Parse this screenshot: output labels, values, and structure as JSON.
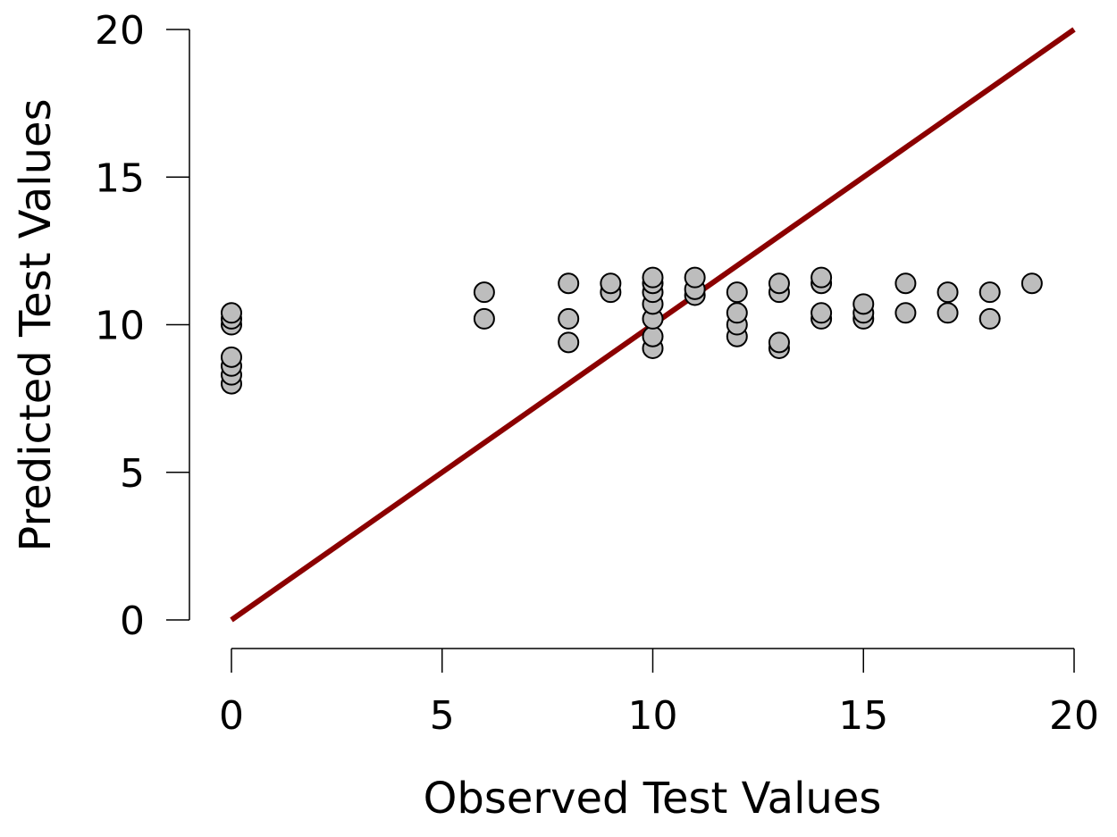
{
  "chart_data": {
    "type": "scatter",
    "title": "",
    "xlabel": "Observed Test Values",
    "ylabel": "Predicted Test Values",
    "xlim": [
      0,
      20
    ],
    "ylim": [
      0,
      20
    ],
    "xticks": [
      0,
      5,
      10,
      15,
      20
    ],
    "yticks": [
      0,
      5,
      10,
      15,
      20
    ],
    "xtick_labels": [
      "0",
      "5",
      "10",
      "15",
      "20"
    ],
    "ytick_labels": [
      "0",
      "5",
      "10",
      "15",
      "20"
    ],
    "grid": false,
    "legend": "none",
    "reference_line": {
      "from": [
        0,
        0
      ],
      "to": [
        20,
        20
      ],
      "color": "#8b0000"
    },
    "marker_color": "#bdbdbd",
    "points": [
      [
        0,
        8.0
      ],
      [
        0,
        8.3
      ],
      [
        0,
        8.6
      ],
      [
        0,
        8.9
      ],
      [
        0,
        10.0
      ],
      [
        0,
        10.2
      ],
      [
        0,
        10.4
      ],
      [
        6,
        10.2
      ],
      [
        6,
        11.1
      ],
      [
        8,
        9.4
      ],
      [
        8,
        10.2
      ],
      [
        8,
        11.4
      ],
      [
        9,
        11.1
      ],
      [
        9,
        11.4
      ],
      [
        10,
        9.2
      ],
      [
        10,
        9.6
      ],
      [
        10,
        10.2
      ],
      [
        10,
        10.7
      ],
      [
        10,
        11.1
      ],
      [
        10,
        11.4
      ],
      [
        10,
        11.6
      ],
      [
        11,
        11.0
      ],
      [
        11,
        11.2
      ],
      [
        11,
        11.6
      ],
      [
        12,
        9.6
      ],
      [
        12,
        10.0
      ],
      [
        12,
        10.4
      ],
      [
        12,
        11.1
      ],
      [
        13,
        9.2
      ],
      [
        13,
        9.4
      ],
      [
        13,
        11.1
      ],
      [
        13,
        11.4
      ],
      [
        14,
        10.2
      ],
      [
        14,
        10.4
      ],
      [
        14,
        11.4
      ],
      [
        14,
        11.6
      ],
      [
        15,
        10.2
      ],
      [
        15,
        10.4
      ],
      [
        15,
        10.7
      ],
      [
        16,
        10.4
      ],
      [
        16,
        11.4
      ],
      [
        17,
        10.4
      ],
      [
        17,
        11.1
      ],
      [
        18,
        10.2
      ],
      [
        18,
        11.1
      ],
      [
        19,
        11.4
      ]
    ]
  }
}
